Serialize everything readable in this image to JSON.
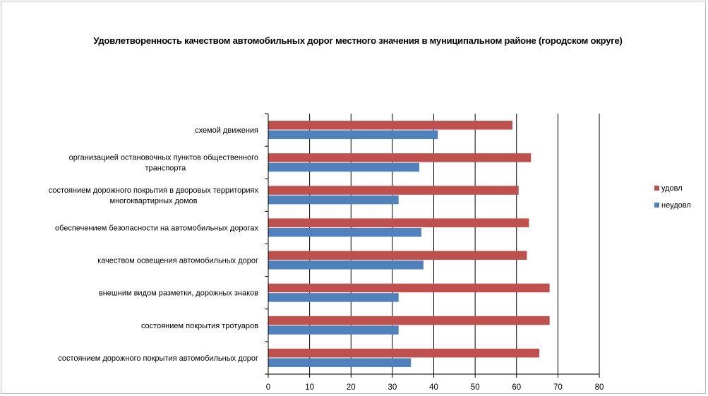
{
  "chart_data": {
    "type": "bar",
    "orientation": "horizontal",
    "title": "Удовлетворенность качеством автомобильных дорог местного значения в  муниципальном районе (городском округе)",
    "categories": [
      [
        "схемой движения"
      ],
      [
        "организацией остановочных пунктов общественного",
        "транспорта"
      ],
      [
        "состоянием дорожного покрытия  в дворовых территориях",
        "многоквартирных домов"
      ],
      [
        "обеспечением  безопасности на автомобильных дорогах"
      ],
      [
        "качеством освещения  автомобильных дорог"
      ],
      [
        "внешним  видом разметки, дорожных знаков"
      ],
      [
        "состоянием покрытия тротуаров"
      ],
      [
        "состоянием дорожного покрытия автомобильных дорог"
      ]
    ],
    "series": [
      {
        "name": "удовл",
        "color": "#c0504d",
        "values": [
          59,
          63.5,
          60.5,
          63,
          62.5,
          68,
          68,
          65.5
        ]
      },
      {
        "name": "неудовл",
        "color": "#4f81bd",
        "values": [
          41,
          36.5,
          31.5,
          37,
          37.5,
          31.5,
          31.5,
          34.5
        ]
      }
    ],
    "xlim": [
      0,
      80
    ],
    "xticks": [
      0,
      10,
      20,
      30,
      40,
      50,
      60,
      70,
      80
    ],
    "grid": true,
    "legend": "right"
  }
}
